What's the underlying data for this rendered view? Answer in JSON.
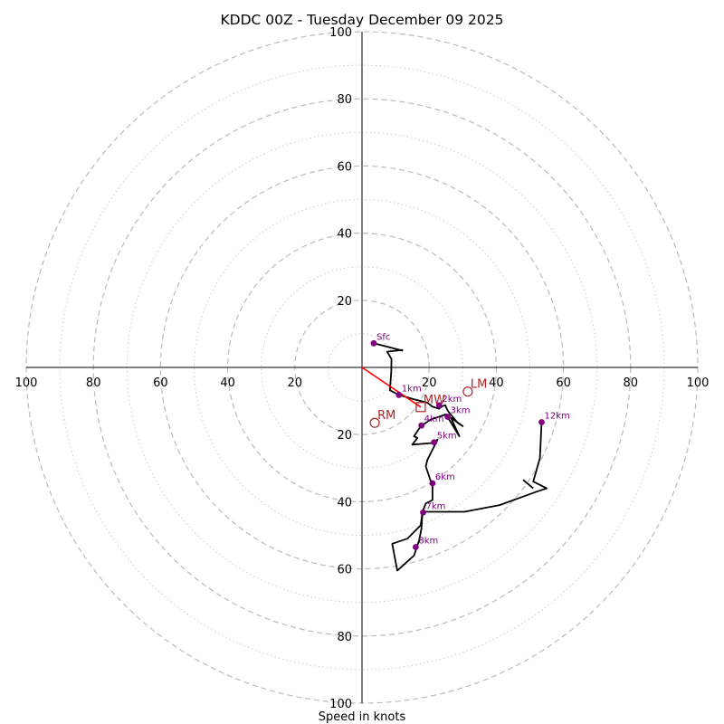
{
  "chart_data": {
    "type": "hodograph",
    "title": "KDDC 00Z - Tuesday December 09 2025",
    "xlabel": "Speed in knots",
    "units": "knots",
    "range": [
      -100,
      100
    ],
    "axis_ticks": [
      {
        "label": "20",
        "value": 20
      },
      {
        "label": "40",
        "value": 40
      },
      {
        "label": "60",
        "value": 60
      },
      {
        "label": "80",
        "value": 80
      },
      {
        "label": "100",
        "value": 100
      }
    ],
    "major_rings": [
      20,
      40,
      60,
      80,
      100
    ],
    "minor_rings": [
      10,
      30,
      50,
      70,
      90
    ],
    "hodograph_trace": [
      [
        3.5,
        7.2
      ],
      [
        12,
        5
      ],
      [
        12,
        5.2
      ],
      [
        7.5,
        4.7
      ],
      [
        8.8,
        2.5
      ],
      [
        8.7,
        -1.5
      ],
      [
        8.3,
        -6.8
      ],
      [
        11,
        -8.2
      ],
      [
        15.5,
        -9.5
      ],
      [
        19.5,
        -10.5
      ],
      [
        21,
        -11.7
      ],
      [
        23,
        -12.3
      ],
      [
        24,
        -11.5
      ],
      [
        24.8,
        -11.3
      ],
      [
        25.5,
        -12.8
      ],
      [
        26,
        -13.5
      ],
      [
        28.5,
        -16.5
      ],
      [
        30,
        -17.5
      ],
      [
        26.5,
        -15
      ],
      [
        29,
        -20.5
      ],
      [
        25,
        -14
      ],
      [
        20.5,
        -15.5
      ],
      [
        17.5,
        -17.5
      ],
      [
        16.5,
        -19
      ],
      [
        15.5,
        -20.5
      ],
      [
        16.5,
        -21
      ],
      [
        15,
        -23
      ],
      [
        21,
        -22.5
      ],
      [
        22.5,
        -21.5
      ],
      [
        19.5,
        -27.5
      ],
      [
        19,
        -29.5
      ],
      [
        20.5,
        -34
      ],
      [
        21,
        -34.5
      ],
      [
        21,
        -39.5
      ],
      [
        19,
        -40.5
      ],
      [
        18,
        -43
      ],
      [
        19,
        -43
      ],
      [
        30.5,
        -43
      ],
      [
        41,
        -41
      ],
      [
        52,
        -37
      ],
      [
        55,
        -36
      ],
      [
        51,
        -34
      ],
      [
        53,
        -27
      ],
      [
        53.5,
        -16
      ]
    ],
    "height_markers": [
      {
        "label": "Sfc",
        "u": 3.5,
        "v": 7.2
      },
      {
        "label": "1km",
        "u": 11,
        "v": -8.2
      },
      {
        "label": "2km",
        "u": 23,
        "v": -11.3
      },
      {
        "label": "3km",
        "u": 25.5,
        "v": -14.7
      },
      {
        "label": "4km",
        "u": 17.7,
        "v": -17.3
      },
      {
        "label": "5km",
        "u": 21.5,
        "v": -22.3
      },
      {
        "label": "6km",
        "u": 21,
        "v": -34.5
      },
      {
        "label": "7km",
        "u": 18.2,
        "v": -43.2
      },
      {
        "label": "8km",
        "u": 16,
        "v": -53.5
      },
      {
        "label": "12km",
        "u": 53.5,
        "v": -16.3
      }
    ],
    "lower_trace": [
      [
        18,
        -43
      ],
      [
        17.5,
        -47
      ],
      [
        13.5,
        -51
      ],
      [
        9,
        -52.5
      ],
      [
        10.5,
        -60.5
      ],
      [
        15.5,
        -56
      ],
      [
        17,
        -51.5
      ],
      [
        17.7,
        -48
      ],
      [
        18,
        -43
      ]
    ],
    "motion_vectors": [
      {
        "label": "MW",
        "u": 17.5,
        "v": -11.8,
        "marker": "square"
      },
      {
        "label": "LM",
        "u": 31.5,
        "v": -7.2,
        "marker": "circle"
      },
      {
        "label": "RM",
        "u": 3.8,
        "v": -16.5,
        "marker": "circle"
      }
    ],
    "mean_wind_line": [
      [
        0,
        0
      ],
      [
        17.5,
        -11.8
      ]
    ],
    "colors": {
      "trace": "#000000",
      "markers": "#800080",
      "motion": "#b22222",
      "mean_wind_line": "#ff0000",
      "major_ring": "#bbbbbb",
      "minor_ring": "#cccccc"
    }
  }
}
